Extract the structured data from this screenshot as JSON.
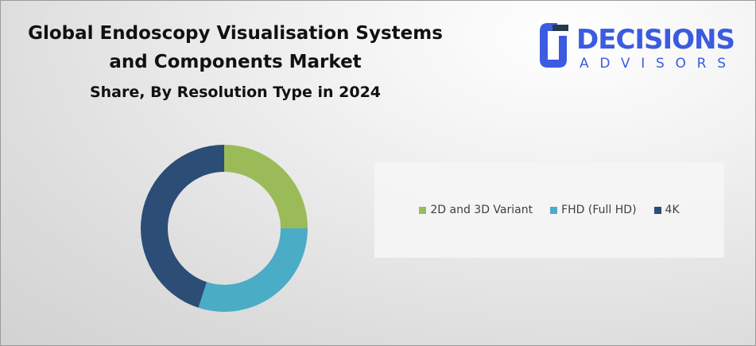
{
  "title": {
    "line1": "Global Endoscopy Visualisation Systems",
    "line2": "and Components Market",
    "line3": "Share, By Resolution Type in 2024"
  },
  "logo": {
    "top": "DECISIONS",
    "bottom": "ADVISORS",
    "color": "#3b5be0"
  },
  "chart_data": {
    "type": "pie",
    "donut": true,
    "title": "Global Endoscopy Visualisation Systems and Components Market Share, By Resolution Type in 2024",
    "categories": [
      "2D and 3D Variant",
      "FHD (Full HD)",
      "4K"
    ],
    "values": [
      25,
      30,
      45
    ],
    "unit": "%",
    "colors": [
      "#9bbb59",
      "#4bacc6",
      "#2c4d75"
    ],
    "legend": "right"
  }
}
